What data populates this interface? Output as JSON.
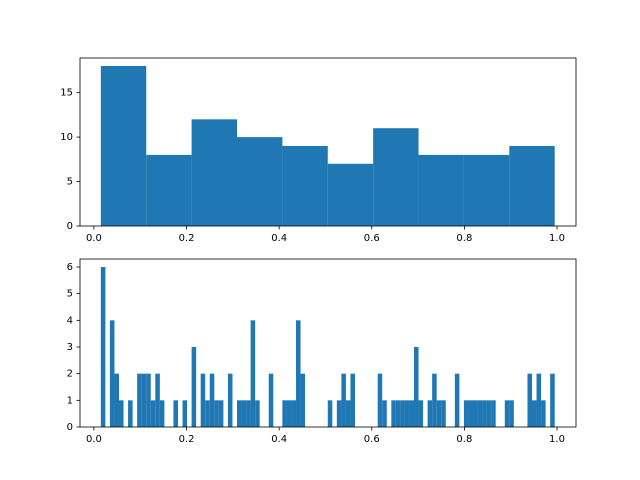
{
  "chart_data": [
    {
      "type": "histogram",
      "color": "#1f77b4",
      "bins": [
        0.015,
        0.113,
        0.211,
        0.309,
        0.407,
        0.505,
        0.603,
        0.701,
        0.799,
        0.897,
        0.995
      ],
      "values": [
        18,
        8,
        12,
        10,
        9,
        7,
        11,
        8,
        8,
        9
      ],
      "xlim": [
        -0.03,
        1.041
      ],
      "ylim": [
        0,
        18.9
      ],
      "xticks": [
        {
          "value": 0,
          "label": "0.0"
        },
        0.2,
        0.4,
        0.6,
        0.8,
        {
          "value": 1,
          "label": "1.0"
        }
      ],
      "yticks": [
        0,
        5,
        10,
        15
      ]
    },
    {
      "type": "histogram",
      "color": "#1f77b4",
      "bins": [
        0.015,
        0.0248,
        0.0346,
        0.0444,
        0.0542,
        0.064,
        0.0738,
        0.0836,
        0.0934,
        0.1032,
        0.113,
        0.1228,
        0.1326,
        0.1424,
        0.1522,
        0.162,
        0.1718,
        0.1816,
        0.1914,
        0.2012,
        0.211,
        0.2208,
        0.2306,
        0.2404,
        0.2502,
        0.26,
        0.2698,
        0.2796,
        0.2894,
        0.2992,
        0.309,
        0.3188,
        0.3286,
        0.3384,
        0.3482,
        0.358,
        0.3678,
        0.3776,
        0.3874,
        0.3972,
        0.407,
        0.4168,
        0.4266,
        0.4364,
        0.4462,
        0.456,
        0.4658,
        0.4756,
        0.4854,
        0.4952,
        0.505,
        0.5148,
        0.5246,
        0.5344,
        0.5442,
        0.554,
        0.5638,
        0.5736,
        0.5834,
        0.5932,
        0.603,
        0.6128,
        0.6226,
        0.6324,
        0.6422,
        0.652,
        0.6618,
        0.6716,
        0.6814,
        0.6912,
        0.701,
        0.7108,
        0.7206,
        0.7304,
        0.7402,
        0.75,
        0.7598,
        0.7696,
        0.7794,
        0.7892,
        0.799,
        0.8088,
        0.8186,
        0.8284,
        0.8382,
        0.848,
        0.8578,
        0.8676,
        0.8774,
        0.8872,
        0.897,
        0.9068,
        0.9166,
        0.9264,
        0.9362,
        0.946,
        0.9558,
        0.9656,
        0.9754,
        0.9852,
        0.995
      ],
      "values": [
        6,
        0,
        4,
        2,
        1,
        0,
        1,
        0,
        2,
        2,
        2,
        1,
        2,
        1,
        0,
        0,
        1,
        0,
        1,
        0,
        3,
        0,
        2,
        1,
        2,
        1,
        1,
        0,
        2,
        0,
        1,
        1,
        1,
        4,
        1,
        0,
        0,
        2,
        0,
        0,
        1,
        1,
        1,
        4,
        2,
        0,
        0,
        0,
        0,
        0,
        1,
        0,
        1,
        2,
        1,
        2,
        0,
        0,
        0,
        0,
        0,
        2,
        1,
        0,
        1,
        1,
        1,
        1,
        1,
        3,
        1,
        0,
        1,
        2,
        1,
        1,
        0,
        0,
        2,
        0,
        1,
        1,
        1,
        1,
        1,
        1,
        1,
        0,
        0,
        1,
        1,
        0,
        0,
        0,
        2,
        1,
        2,
        1,
        0,
        2
      ],
      "xlim": [
        -0.03,
        1.041
      ],
      "ylim": [
        0,
        6.3
      ],
      "xticks": [
        {
          "value": 0,
          "label": "0.0"
        },
        0.2,
        0.4,
        0.6,
        0.8,
        {
          "value": 1,
          "label": "1.0"
        }
      ],
      "yticks": [
        0,
        1,
        2,
        3,
        4,
        5,
        6
      ]
    }
  ]
}
